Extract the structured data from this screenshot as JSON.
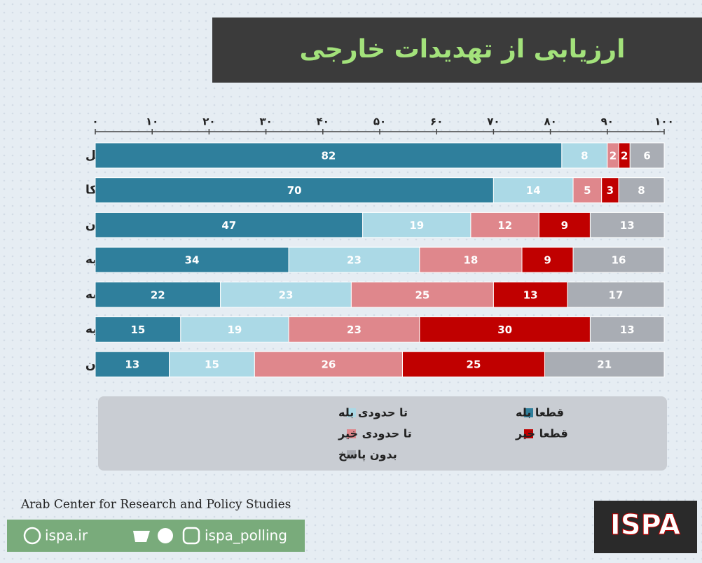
{
  "chart_data": {
    "type": "stacked-bar-horizontal",
    "title": "ارزیابی از تهدیدات خارجی",
    "categories": [
      "اسرائیل",
      "آمریکا",
      "ایران",
      "روسیه",
      "فرانسه",
      "ترکیه",
      "چین"
    ],
    "series": [
      {
        "name": "قطعا بله",
        "color": "#2f7f9c",
        "values": [
          82,
          70,
          47,
          34,
          22,
          15,
          13
        ]
      },
      {
        "name": "تا حدودی بله",
        "color": "#abd9e6",
        "values": [
          8,
          14,
          19,
          23,
          23,
          19,
          15
        ]
      },
      {
        "name": "تا حدودی خیر",
        "color": "#df878c",
        "values": [
          2,
          5,
          12,
          18,
          25,
          23,
          26
        ]
      },
      {
        "name": "قطعا خیر",
        "color": "#c00000",
        "values": [
          2,
          3,
          9,
          9,
          13,
          30,
          25
        ]
      },
      {
        "name": "بدون پاسخ",
        "color": "#a9adb4",
        "values": [
          6,
          8,
          13,
          16,
          17,
          13,
          21
        ]
      }
    ],
    "xlim": [
      0,
      100
    ],
    "xticks": [
      {
        "value": 0,
        "label": "۰"
      },
      {
        "value": 10,
        "label": "۱۰"
      },
      {
        "value": 20,
        "label": "۲۰"
      },
      {
        "value": 30,
        "label": "۳۰"
      },
      {
        "value": 40,
        "label": "۴۰"
      },
      {
        "value": 50,
        "label": "۵۰"
      },
      {
        "value": 60,
        "label": "۶۰"
      },
      {
        "value": 70,
        "label": "۷۰"
      },
      {
        "value": 80,
        "label": "۸۰"
      },
      {
        "value": 90,
        "label": "۹۰"
      },
      {
        "value": 100,
        "label": "۱۰۰"
      }
    ],
    "source": "Arab Center for Research and Policy Studies",
    "website": "ispa.ir",
    "social": "ispa_polling",
    "logo": "ISPA"
  }
}
